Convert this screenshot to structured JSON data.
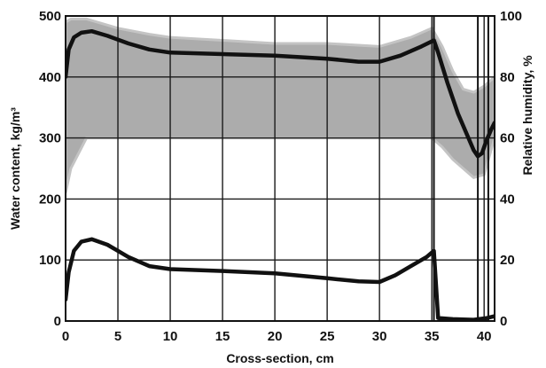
{
  "chart_data": {
    "type": "line",
    "title": "",
    "xlabel": "Cross-section, cm",
    "ylabel_left": "Water content, kg/m³",
    "ylabel_right": "Relative humidity, %",
    "xlim": [
      0,
      41
    ],
    "ylim_left": [
      0,
      500
    ],
    "ylim_right": [
      0,
      100
    ],
    "x_ticks": [
      0,
      5,
      10,
      15,
      20,
      25,
      30,
      35,
      40
    ],
    "y_left_ticks": [
      0,
      100,
      200,
      300,
      400,
      500
    ],
    "y_right_ticks": [
      0,
      20,
      40,
      60,
      80,
      100
    ],
    "grid": true,
    "colors": {
      "line": "#111111",
      "band": "#8c8c8c",
      "band_light": "#c4c4c4",
      "grid": "#1a1a1a"
    },
    "vertical_markers_x": [
      35.2,
      39.4,
      40.4
    ],
    "series": [
      {
        "axis": "right",
        "x": [
          0,
          0.3,
          0.8,
          1.5,
          2.5,
          4,
          6,
          8,
          10,
          15,
          20,
          25,
          28,
          30,
          32,
          34,
          35.2,
          35.6,
          36.5,
          37.5,
          38.5,
          39,
          39.4,
          39.8,
          40.2,
          40.7,
          41
        ],
        "values": [
          80,
          89,
          93,
          94.5,
          95,
          93.5,
          91,
          89,
          88,
          87.5,
          87,
          86,
          85,
          85,
          87,
          90,
          92,
          88,
          78,
          68,
          60,
          56,
          54,
          55,
          59,
          63,
          65
        ]
      },
      {
        "axis": "left",
        "x": [
          0,
          0.3,
          0.8,
          1.5,
          2.5,
          4,
          6,
          8,
          10,
          15,
          20,
          25,
          28,
          30,
          31.5,
          33,
          34.5,
          35.2,
          35.6,
          37,
          39,
          40.3,
          41
        ],
        "values": [
          35,
          80,
          115,
          130,
          134,
          125,
          105,
          90,
          85,
          82,
          78,
          70,
          65,
          64,
          75,
          90,
          105,
          115,
          5,
          3,
          2,
          5,
          8
        ]
      }
    ],
    "bands": [
      {
        "axis": "right",
        "x": [
          0,
          0.5,
          2,
          5,
          8,
          10,
          15,
          20,
          25,
          30,
          33,
          35,
          36,
          37,
          38,
          39,
          40,
          41
        ],
        "upper": [
          98,
          99,
          99,
          96,
          94,
          93,
          92,
          91,
          91,
          90,
          93,
          96,
          90,
          82,
          76,
          75,
          77,
          80
        ],
        "lower": [
          42,
          50,
          60,
          60,
          60,
          60,
          60,
          60,
          60,
          60,
          60,
          60,
          57,
          53,
          50,
          47,
          48,
          60
        ]
      }
    ]
  }
}
